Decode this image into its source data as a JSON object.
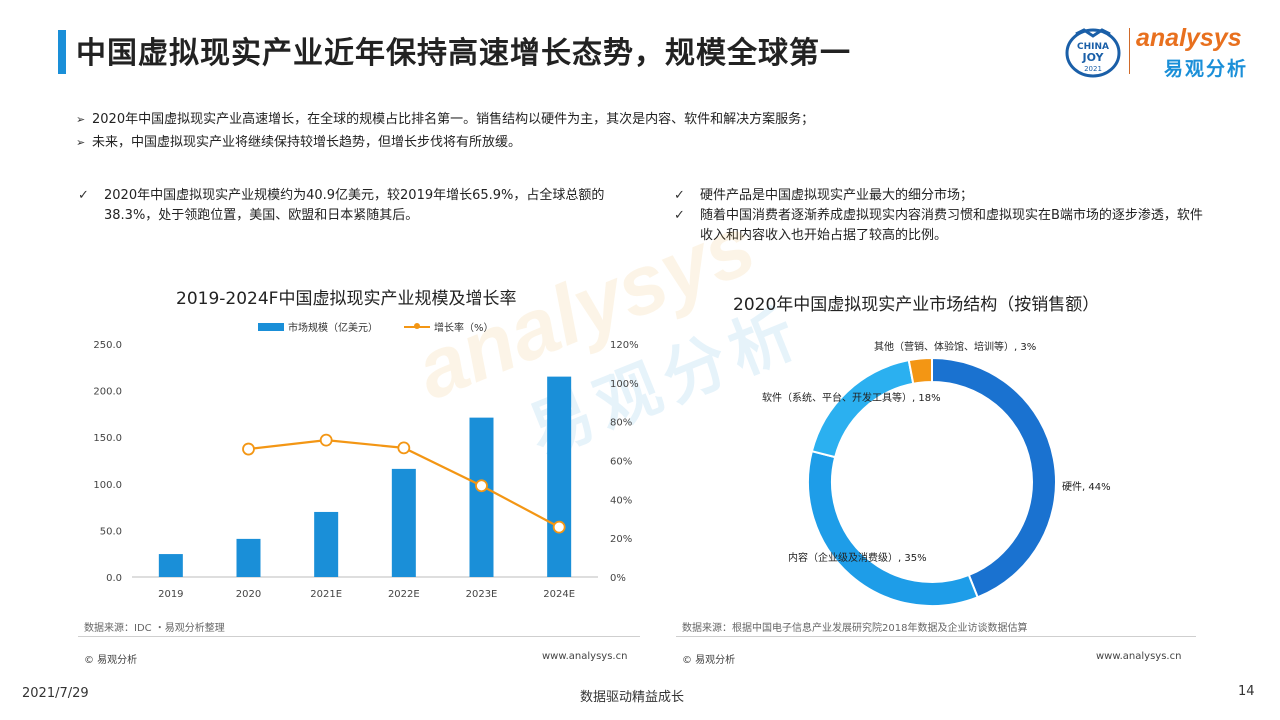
{
  "page_title": "中国虚拟现实产业近年保持高速增长态势，规模全球第一",
  "logo": {
    "china_joy_top": "CHINA",
    "china_joy_mid": "JOY",
    "china_joy_year": "2021",
    "brand": "analysys",
    "brand_cn": "易观分析"
  },
  "bullets": [
    "2020年中国虚拟现实产业高速增长，在全球的规模占比排名第一。销售结构以硬件为主，其次是内容、软件和解决方案服务；",
    "未来，中国虚拟现实产业将继续保持较增长趋势，但增长步伐将有所放缓。"
  ],
  "checks_left": [
    "2020年中国虚拟现实产业规模约为40.9亿美元，较2019年增长65.9%，占全球总额的38.3%，处于领跑位置，美国、欧盟和日本紧随其后。"
  ],
  "checks_right": [
    "硬件产品是中国虚拟现实产业最大的细分市场；",
    "随着中国消费者逐渐养成虚拟现实内容消费习惯和虚拟现实在B端市场的逐步渗透，软件收入和内容收入也开始占据了较高的比例。"
  ],
  "watermark": {
    "brand": "analysys",
    "brand_cn": "易观分析"
  },
  "chart_data": [
    {
      "type": "bar",
      "title": "2019-2024F中国虚拟现实产业规模及增长率",
      "categories": [
        "2019",
        "2020",
        "2021E",
        "2022E",
        "2023E",
        "2024E"
      ],
      "series": [
        {
          "name": "市场规模（亿美元）",
          "type": "bar",
          "axis": "left",
          "color": "#1a8fd8",
          "values": [
            24.6,
            40.9,
            69.8,
            116.0,
            171.0,
            215.0
          ]
        },
        {
          "name": "增长率（%）",
          "type": "line",
          "axis": "right",
          "color": "#f39614",
          "values": [
            null,
            65.9,
            70.5,
            66.5,
            47.0,
            25.7
          ]
        }
      ],
      "ylim": [
        0,
        250
      ],
      "y_ticks": [
        "0.0",
        "50.0",
        "100.0",
        "150.0",
        "200.0",
        "250.0"
      ],
      "y2lim": [
        0,
        120
      ],
      "y2_ticks": [
        "0%",
        "20%",
        "40%",
        "60%",
        "80%",
        "100%",
        "120%"
      ],
      "legend": "top",
      "grid": false,
      "source": "数据来源：IDC ・易观分析整理"
    },
    {
      "type": "pie",
      "donut": true,
      "title": "2020年中国虚拟现实产业市场结构（按销售额）",
      "slices": [
        {
          "name": "硬件",
          "value": 44,
          "color": "#1a72d0",
          "label": "硬件, 44%"
        },
        {
          "name": "内容（企业级及消费级）",
          "value": 35,
          "color": "#1e9de8",
          "label": "内容（企业级及消费级）, 35%"
        },
        {
          "name": "软件（系统、平台、开发工具等）",
          "value": 18,
          "color": "#2bb0f0",
          "label": "软件（系统、平台、开发工具等）, 18%"
        },
        {
          "name": "其他（营销、体验馆、培训等）",
          "value": 3,
          "color": "#f39614",
          "label": "其他（营销、体验馆、培训等）, 3%"
        }
      ],
      "source": "数据来源：根据中国电子信息产业发展研究院2018年数据及企业访谈数据估算"
    }
  ],
  "panel_footer": {
    "copyright": "© 易观分析",
    "website": "www.analysys.cn"
  },
  "footer": {
    "date": "2021/7/29",
    "slogan": "数据驱动精益成长",
    "page": "14"
  }
}
